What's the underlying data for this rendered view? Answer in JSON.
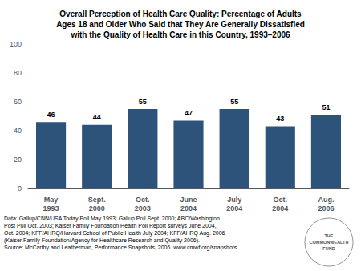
{
  "chart_data": {
    "type": "bar",
    "title": "Overall Perception of Health Care Quality: Percentage of Adults\nAges 18 and Older Who Said that They Are Generally Dissatisfied\nwith the Quality of Health Care in this Country, 1993–2006",
    "categories": [
      "May\n1993",
      "Sept.\n2000",
      "Oct.\n2003",
      "June\n2004",
      "July\n2004",
      "Oct.\n2004",
      "Aug.\n2006"
    ],
    "values": [
      46,
      44,
      55,
      47,
      55,
      43,
      51
    ],
    "color": "#2E537A",
    "ylim": [
      0,
      100
    ],
    "yticks": [
      0,
      20,
      40,
      60,
      80,
      100
    ],
    "grid": false,
    "data_labels": true,
    "annotations": [
      "Data: Gallup/CNN/USA Today Poll May 1993; Gallup Poll Sept. 2000; ABC/Washington\nPost Poll Oct. 2003; Kaiser Family Foundation Health Poll Report surveys June 2004,\nOct. 2004; KFF/AHRQ/Harvard School of Public Health July 2004; KFF/AHRQ Aug. 2006\n(Kaiser Family Foundation/Agency for Healthcare Research and Quality 2006).\nSource: McCarthy and Leatherman, Performance Snapshots, 2006. www.cmwf.org/snapshots",
      "THE\nCOMMONWEALTH\nFUND"
    ]
  }
}
